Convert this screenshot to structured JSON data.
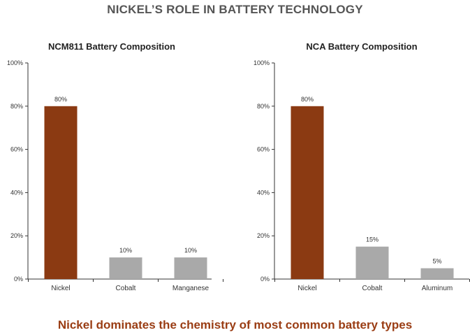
{
  "page": {
    "title": "NICKEL’S ROLE IN BATTERY TECHNOLOGY",
    "footer": "Nickel dominates the chemistry of most common battery types"
  },
  "colors": {
    "highlight_bar": "#8B3A12",
    "other_bar": "#A9A9A9",
    "title_text": "#555555",
    "footer_text": "#9A3D14",
    "axis": "#333333"
  },
  "chart_data": [
    {
      "type": "bar",
      "title": "NCM811 Battery Composition",
      "categories": [
        "Nickel",
        "Cobalt",
        "Manganese"
      ],
      "values": [
        80,
        10,
        10
      ],
      "data_labels": [
        "80%",
        "10%",
        "10%"
      ],
      "highlight": [
        true,
        false,
        false
      ],
      "ylim": [
        0,
        100
      ],
      "yticks": [
        "0%",
        "20%",
        "40%",
        "60%",
        "80%",
        "100%"
      ],
      "xlabel": "",
      "ylabel": "",
      "grid": false,
      "legend": "none"
    },
    {
      "type": "bar",
      "title": "NCA Battery Composition",
      "categories": [
        "Nickel",
        "Cobalt",
        "Aluminum"
      ],
      "values": [
        80,
        15,
        5
      ],
      "data_labels": [
        "80%",
        "15%",
        "5%"
      ],
      "highlight": [
        true,
        false,
        false
      ],
      "ylim": [
        0,
        100
      ],
      "yticks": [
        "0%",
        "20%",
        "40%",
        "60%",
        "80%",
        "100%"
      ],
      "xlabel": "",
      "ylabel": "",
      "grid": false,
      "legend": "none"
    }
  ]
}
